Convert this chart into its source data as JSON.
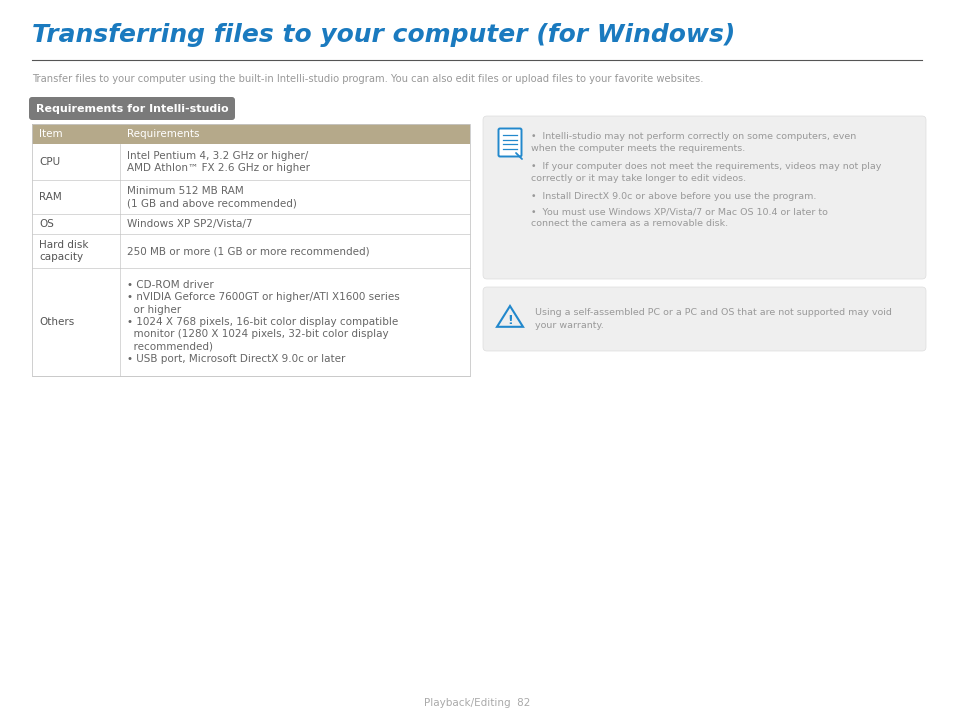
{
  "title": "Transferring files to your computer (for Windows)",
  "subtitle": "Transfer files to your computer using the built-in Intelli-studio program. You can also edit files or upload files to your favorite websites.",
  "title_color": "#1a7abf",
  "subtitle_color": "#999999",
  "section_label": "Requirements for Intelli-studio",
  "section_label_bg": "#7a7a7a",
  "section_label_color": "#ffffff",
  "table_header_bg": "#b5a98a",
  "table_header_color": "#ffffff",
  "table_border_color": "#c8c8c8",
  "table_text_color": "#666666",
  "table_item_color": "#555555",
  "table_rows": [
    {
      "item": "CPU",
      "req": "Intel Pentium 4, 3.2 GHz or higher/\nAMD Athlon™ FX 2.6 GHz or higher"
    },
    {
      "item": "RAM",
      "req": "Minimum 512 MB RAM\n(1 GB and above recommended)"
    },
    {
      "item": "OS",
      "req": "Windows XP SP2/Vista/7"
    },
    {
      "item": "Hard disk\ncapacity",
      "req": "250 MB or more (1 GB or more recommended)"
    },
    {
      "item": "Others",
      "req": "• CD-ROM driver\n• nVIDIA Geforce 7600GT or higher/ATI X1600 series\n  or higher\n• 1024 X 768 pixels, 16-bit color display compatible\n  monitor (1280 X 1024 pixels, 32-bit color display\n  recommended)\n• USB port, Microsoft DirectX 9.0c or later"
    }
  ],
  "note_box_bg": "#efefef",
  "note_box_border": "#dddddd",
  "note_icon_color": "#2288cc",
  "note_text_color": "#999999",
  "note_items": [
    "Intelli-studio may not perform correctly on some computers, even\nwhen the computer meets the requirements.",
    "If your computer does not meet the requirements, videos may not play\ncorrectly or it may take longer to edit videos.",
    "Install DirectX 9.0c or above before you use the program.",
    "You must use Windows XP/Vista/7 or Mac OS 10.4 or later to\nconnect the camera as a removable disk."
  ],
  "warning_box_bg": "#efefef",
  "warning_box_border": "#dddddd",
  "warning_icon_color": "#2288cc",
  "warning_text_color": "#999999",
  "warning_text": "Using a self-assembled PC or a PC and OS that are not supported may void\nyour warranty.",
  "footer_text": "Playback/Editing  82",
  "footer_color": "#aaaaaa",
  "bg_color": "#ffffff"
}
